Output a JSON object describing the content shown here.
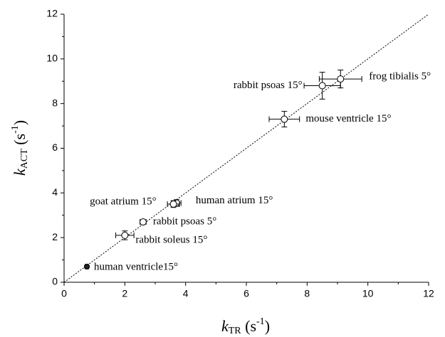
{
  "chart_data": {
    "type": "scatter",
    "x_label": [
      "k",
      "TR",
      " (s",
      "-1",
      ")"
    ],
    "y_label": [
      "k",
      "ACT",
      " (s",
      "-1",
      ")"
    ],
    "xlim": [
      0,
      12
    ],
    "ylim": [
      0,
      12
    ],
    "xticks": [
      0,
      2,
      4,
      6,
      8,
      10,
      12
    ],
    "yticks": [
      0,
      2,
      4,
      6,
      8,
      10,
      12
    ],
    "points": [
      {
        "label": "frog tibialis 5°",
        "x": 9.1,
        "y": 9.1,
        "xerr": 0.7,
        "yerr": 0.4
      },
      {
        "label": "rabbit psoas 15°",
        "x": 8.5,
        "y": 8.8,
        "xerr": 0.6,
        "yerr": 0.6
      },
      {
        "label": "mouse ventricle 15°",
        "x": 7.25,
        "y": 7.3,
        "xerr": 0.5,
        "yerr": 0.35
      },
      {
        "label": "human atrium 15°",
        "x": 3.7,
        "y": 3.55,
        "xerr": 0.15,
        "yerr": 0.15
      },
      {
        "label": "goat atrium 15°",
        "x": 3.6,
        "y": 3.5,
        "xerr": 0.2,
        "yerr": 0.15
      },
      {
        "label": "rabbit psoas 5°",
        "x": 2.6,
        "y": 2.7,
        "xerr": 0.1,
        "yerr": 0.08
      },
      {
        "label": "rabbit soleus 15°",
        "x": 2.0,
        "y": 2.1,
        "xerr": 0.3,
        "yerr": 0.2
      },
      {
        "label": "human ventricle15°",
        "x": 0.75,
        "y": 0.7,
        "xerr": 0.05,
        "yerr": 0.05
      }
    ]
  }
}
